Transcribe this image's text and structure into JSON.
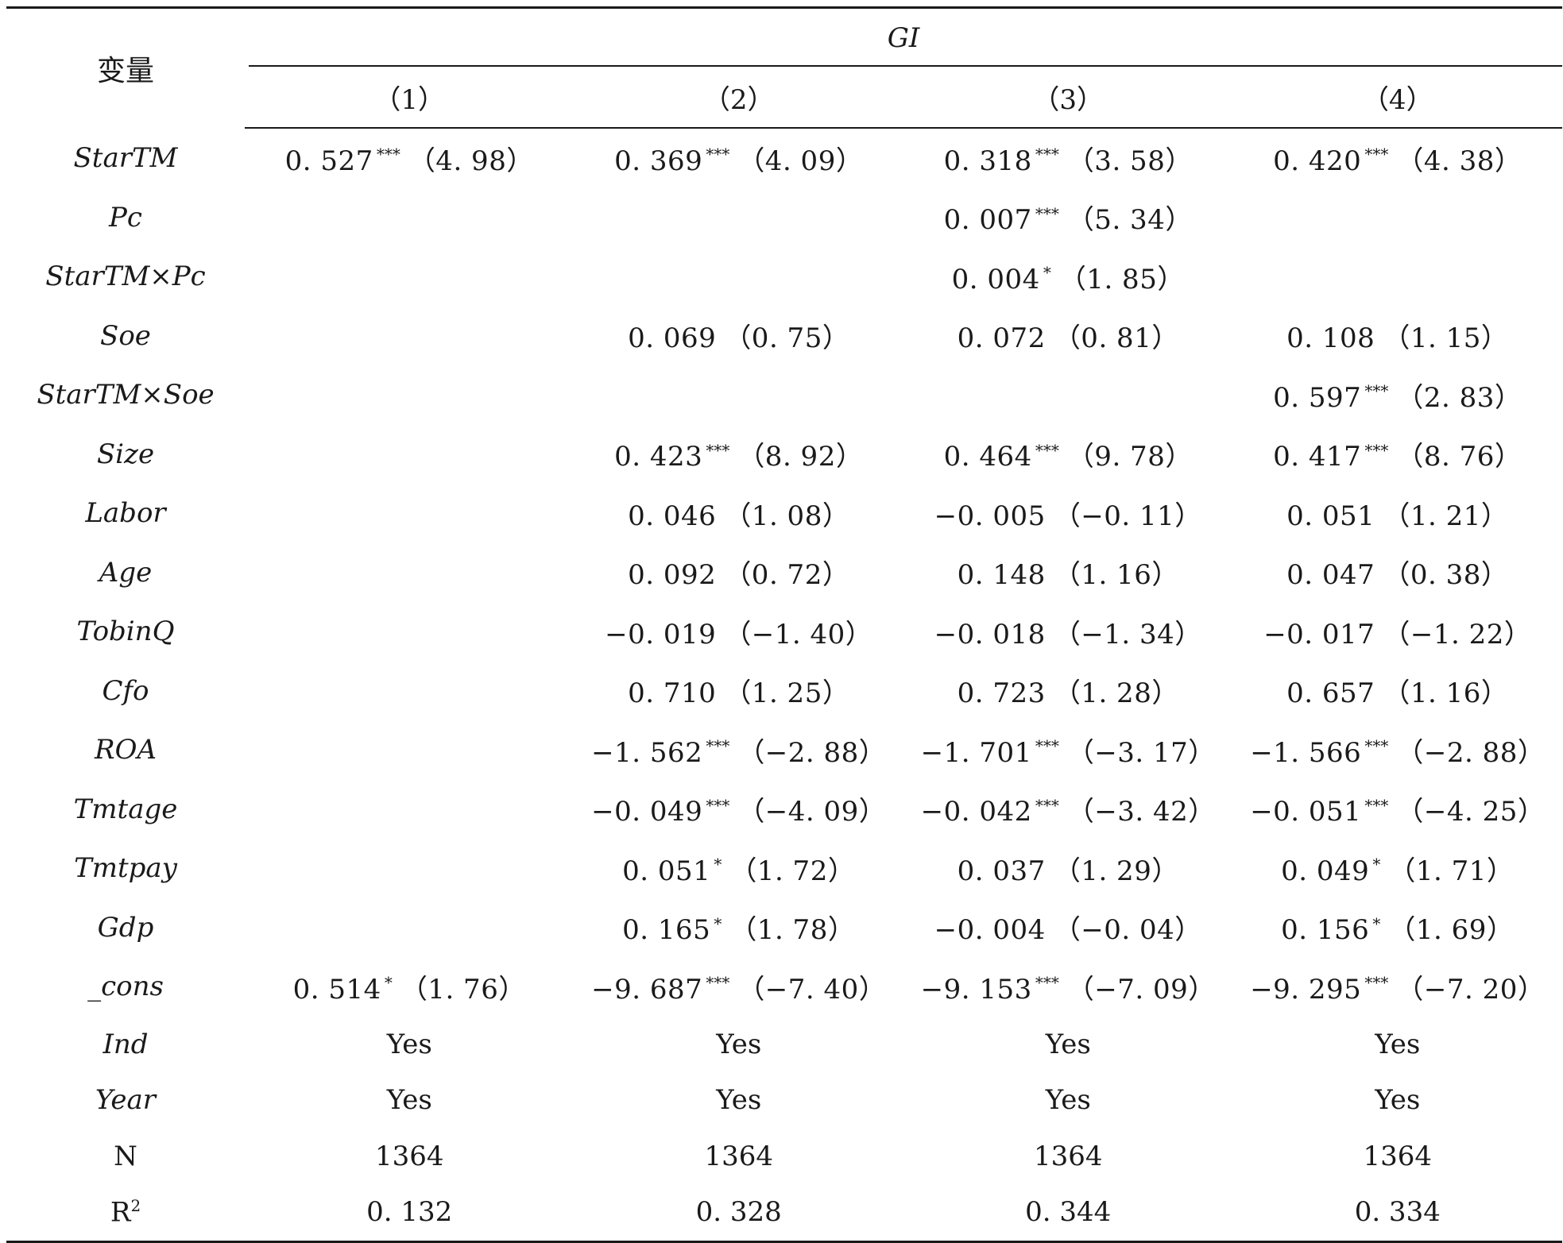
{
  "table": {
    "var_header": "变量",
    "dep_var": "GI",
    "columns": [
      "（1）",
      "（2）",
      "（3）",
      "（4）"
    ],
    "rows": [
      {
        "var": "StarTM",
        "cells": [
          {
            "coef": "0. 527",
            "stars": "***",
            "t": "（4. 98）"
          },
          {
            "coef": "0. 369",
            "stars": "***",
            "t": "（4. 09）"
          },
          {
            "coef": "0. 318",
            "stars": "***",
            "t": "（3. 58）"
          },
          {
            "coef": "0. 420",
            "stars": "***",
            "t": "（4. 38）"
          }
        ]
      },
      {
        "var": "Pc",
        "cells": [
          {
            "coef": "",
            "stars": "",
            "t": ""
          },
          {
            "coef": "",
            "stars": "",
            "t": ""
          },
          {
            "coef": "0. 007",
            "stars": "***",
            "t": "（5. 34）"
          },
          {
            "coef": "",
            "stars": "",
            "t": ""
          }
        ]
      },
      {
        "var": "StarTM×Pc",
        "cells": [
          {
            "coef": "",
            "stars": "",
            "t": ""
          },
          {
            "coef": "",
            "stars": "",
            "t": ""
          },
          {
            "coef": "0. 004",
            "stars": "*",
            "t": "（1. 85）"
          },
          {
            "coef": "",
            "stars": "",
            "t": ""
          }
        ]
      },
      {
        "var": "Soe",
        "cells": [
          {
            "coef": "",
            "stars": "",
            "t": ""
          },
          {
            "coef": "0. 069",
            "stars": "",
            "t": "（0. 75）"
          },
          {
            "coef": "0. 072",
            "stars": "",
            "t": "（0. 81）"
          },
          {
            "coef": "0. 108",
            "stars": "",
            "t": "（1. 15）"
          }
        ]
      },
      {
        "var": "StarTM×Soe",
        "cells": [
          {
            "coef": "",
            "stars": "",
            "t": ""
          },
          {
            "coef": "",
            "stars": "",
            "t": ""
          },
          {
            "coef": "",
            "stars": "",
            "t": ""
          },
          {
            "coef": "0. 597",
            "stars": "***",
            "t": "（2. 83）"
          }
        ]
      },
      {
        "var": "Size",
        "cells": [
          {
            "coef": "",
            "stars": "",
            "t": ""
          },
          {
            "coef": "0. 423",
            "stars": "***",
            "t": "（8. 92）"
          },
          {
            "coef": "0. 464",
            "stars": "***",
            "t": "（9. 78）"
          },
          {
            "coef": "0. 417",
            "stars": "***",
            "t": "（8. 76）"
          }
        ]
      },
      {
        "var": "Labor",
        "cells": [
          {
            "coef": "",
            "stars": "",
            "t": ""
          },
          {
            "coef": "0. 046",
            "stars": "",
            "t": "（1. 08）"
          },
          {
            "coef": "−0. 005",
            "stars": "",
            "t": "（−0. 11）"
          },
          {
            "coef": "0. 051",
            "stars": "",
            "t": "（1. 21）"
          }
        ]
      },
      {
        "var": "Age",
        "cells": [
          {
            "coef": "",
            "stars": "",
            "t": ""
          },
          {
            "coef": "0. 092",
            "stars": "",
            "t": "（0. 72）"
          },
          {
            "coef": "0. 148",
            "stars": "",
            "t": "（1. 16）"
          },
          {
            "coef": "0. 047",
            "stars": "",
            "t": "（0. 38）"
          }
        ]
      },
      {
        "var": "TobinQ",
        "cells": [
          {
            "coef": "",
            "stars": "",
            "t": ""
          },
          {
            "coef": "−0. 019",
            "stars": "",
            "t": "（−1. 40）"
          },
          {
            "coef": "−0. 018",
            "stars": "",
            "t": "（−1. 34）"
          },
          {
            "coef": "−0. 017",
            "stars": "",
            "t": "（−1. 22）"
          }
        ]
      },
      {
        "var": "Cfo",
        "cells": [
          {
            "coef": "",
            "stars": "",
            "t": ""
          },
          {
            "coef": "0. 710",
            "stars": "",
            "t": "（1. 25）"
          },
          {
            "coef": "0. 723",
            "stars": "",
            "t": "（1. 28）"
          },
          {
            "coef": "0. 657",
            "stars": "",
            "t": "（1. 16）"
          }
        ]
      },
      {
        "var": "ROA",
        "cells": [
          {
            "coef": "",
            "stars": "",
            "t": ""
          },
          {
            "coef": "−1. 562",
            "stars": "***",
            "t": "（−2. 88）"
          },
          {
            "coef": "−1. 701",
            "stars": "***",
            "t": "（−3. 17）"
          },
          {
            "coef": "−1. 566",
            "stars": "***",
            "t": "（−2. 88）"
          }
        ]
      },
      {
        "var": "Tmtage",
        "cells": [
          {
            "coef": "",
            "stars": "",
            "t": ""
          },
          {
            "coef": "−0. 049",
            "stars": "***",
            "t": "（−4. 09）"
          },
          {
            "coef": "−0. 042",
            "stars": "***",
            "t": "（−3. 42）"
          },
          {
            "coef": "−0. 051",
            "stars": "***",
            "t": "（−4. 25）"
          }
        ]
      },
      {
        "var": "Tmtpay",
        "cells": [
          {
            "coef": "",
            "stars": "",
            "t": ""
          },
          {
            "coef": "0. 051",
            "stars": "*",
            "t": "（1. 72）"
          },
          {
            "coef": "0. 037",
            "stars": "",
            "t": "（1. 29）"
          },
          {
            "coef": "0. 049",
            "stars": "*",
            "t": "（1. 71）"
          }
        ]
      },
      {
        "var": "Gdp",
        "cells": [
          {
            "coef": "",
            "stars": "",
            "t": ""
          },
          {
            "coef": "0. 165",
            "stars": "*",
            "t": "（1. 78）"
          },
          {
            "coef": "−0. 004",
            "stars": "",
            "t": "（−0. 04）"
          },
          {
            "coef": "0. 156",
            "stars": "*",
            "t": "（1. 69）"
          }
        ]
      },
      {
        "var": "_cons",
        "cells": [
          {
            "coef": "0. 514",
            "stars": "*",
            "t": "（1. 76）"
          },
          {
            "coef": "−9. 687",
            "stars": "***",
            "t": "（−7. 40）"
          },
          {
            "coef": "−9. 153",
            "stars": "***",
            "t": "（−7. 09）"
          },
          {
            "coef": "−9. 295",
            "stars": "***",
            "t": "（−7. 20）"
          }
        ]
      }
    ],
    "stats": [
      {
        "var": "Ind",
        "italic": true,
        "values": [
          "Yes",
          "Yes",
          "Yes",
          "Yes"
        ]
      },
      {
        "var": "Year",
        "italic": true,
        "values": [
          "Yes",
          "Yes",
          "Yes",
          "Yes"
        ]
      },
      {
        "var": "N",
        "italic": false,
        "values": [
          "1364",
          "1364",
          "1364",
          "1364"
        ]
      },
      {
        "var": "R",
        "sup": "2",
        "italic": false,
        "values": [
          "0. 132",
          "0. 328",
          "0. 344",
          "0. 334"
        ]
      }
    ]
  }
}
